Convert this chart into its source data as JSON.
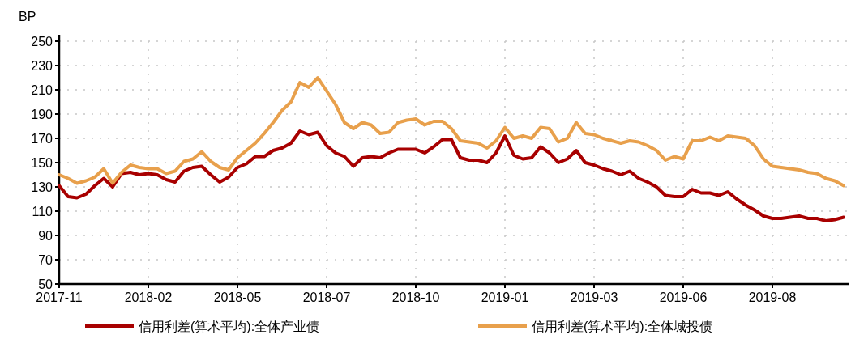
{
  "chart_data": {
    "type": "line",
    "ylabel": "BP",
    "ylim": [
      50,
      250
    ],
    "yticks": [
      50,
      70,
      90,
      110,
      130,
      150,
      170,
      190,
      210,
      230,
      250
    ],
    "grid": true,
    "legend": "bottom",
    "marker": "none",
    "line_style": "solid",
    "categories": [
      "2017-11",
      null,
      null,
      null,
      null,
      null,
      null,
      null,
      null,
      null,
      "2018-02",
      null,
      null,
      null,
      null,
      null,
      null,
      null,
      null,
      null,
      "2018-05",
      null,
      null,
      null,
      null,
      null,
      null,
      null,
      null,
      null,
      "2018-07",
      null,
      null,
      null,
      null,
      null,
      null,
      null,
      null,
      null,
      "2018-10",
      null,
      null,
      null,
      null,
      null,
      null,
      null,
      null,
      null,
      "2019-01",
      null,
      null,
      null,
      null,
      null,
      null,
      null,
      null,
      null,
      "2019-03",
      null,
      null,
      null,
      null,
      null,
      null,
      null,
      null,
      null,
      "2019-06",
      null,
      null,
      null,
      null,
      null,
      null,
      null,
      null,
      null,
      "2019-08",
      null,
      null,
      null,
      null,
      null,
      null,
      null,
      null
    ],
    "series": [
      {
        "name": "信用利差(算术平均):全体产业债",
        "color": "#a80000",
        "values": [
          131,
          122,
          121,
          124,
          131,
          137,
          130,
          141,
          142,
          140,
          141,
          140,
          136,
          134,
          143,
          146,
          147,
          140,
          134,
          138,
          146,
          149,
          155,
          155,
          160,
          162,
          166,
          176,
          173,
          175,
          164,
          158,
          155,
          147,
          154,
          155,
          154,
          158,
          161,
          161,
          161,
          158,
          163,
          169,
          169,
          154,
          152,
          152,
          150,
          158,
          172,
          156,
          153,
          154,
          163,
          158,
          150,
          153,
          160,
          150,
          148,
          145,
          143,
          140,
          143,
          137,
          134,
          130,
          123,
          122,
          122,
          128,
          125,
          125,
          123,
          126,
          120,
          115,
          111,
          106,
          104,
          104,
          105,
          106,
          104,
          104,
          102,
          103,
          105
        ]
      },
      {
        "name": "信用利差(算术平均):全体城投债",
        "color": "#e8a04c",
        "values": [
          140,
          137,
          133,
          135,
          138,
          145,
          133,
          142,
          148,
          146,
          145,
          145,
          141,
          143,
          151,
          153,
          159,
          151,
          146,
          144,
          154,
          160,
          166,
          174,
          183,
          193,
          200,
          216,
          212,
          220,
          209,
          198,
          183,
          178,
          183,
          181,
          174,
          175,
          183,
          185,
          186,
          181,
          184,
          184,
          178,
          168,
          167,
          166,
          162,
          168,
          179,
          170,
          172,
          170,
          179,
          178,
          167,
          170,
          183,
          174,
          173,
          170,
          168,
          166,
          168,
          167,
          164,
          160,
          152,
          155,
          153,
          168,
          168,
          171,
          168,
          172,
          171,
          170,
          164,
          153,
          147,
          146,
          145,
          144,
          142,
          141,
          137,
          135,
          131
        ]
      }
    ]
  }
}
